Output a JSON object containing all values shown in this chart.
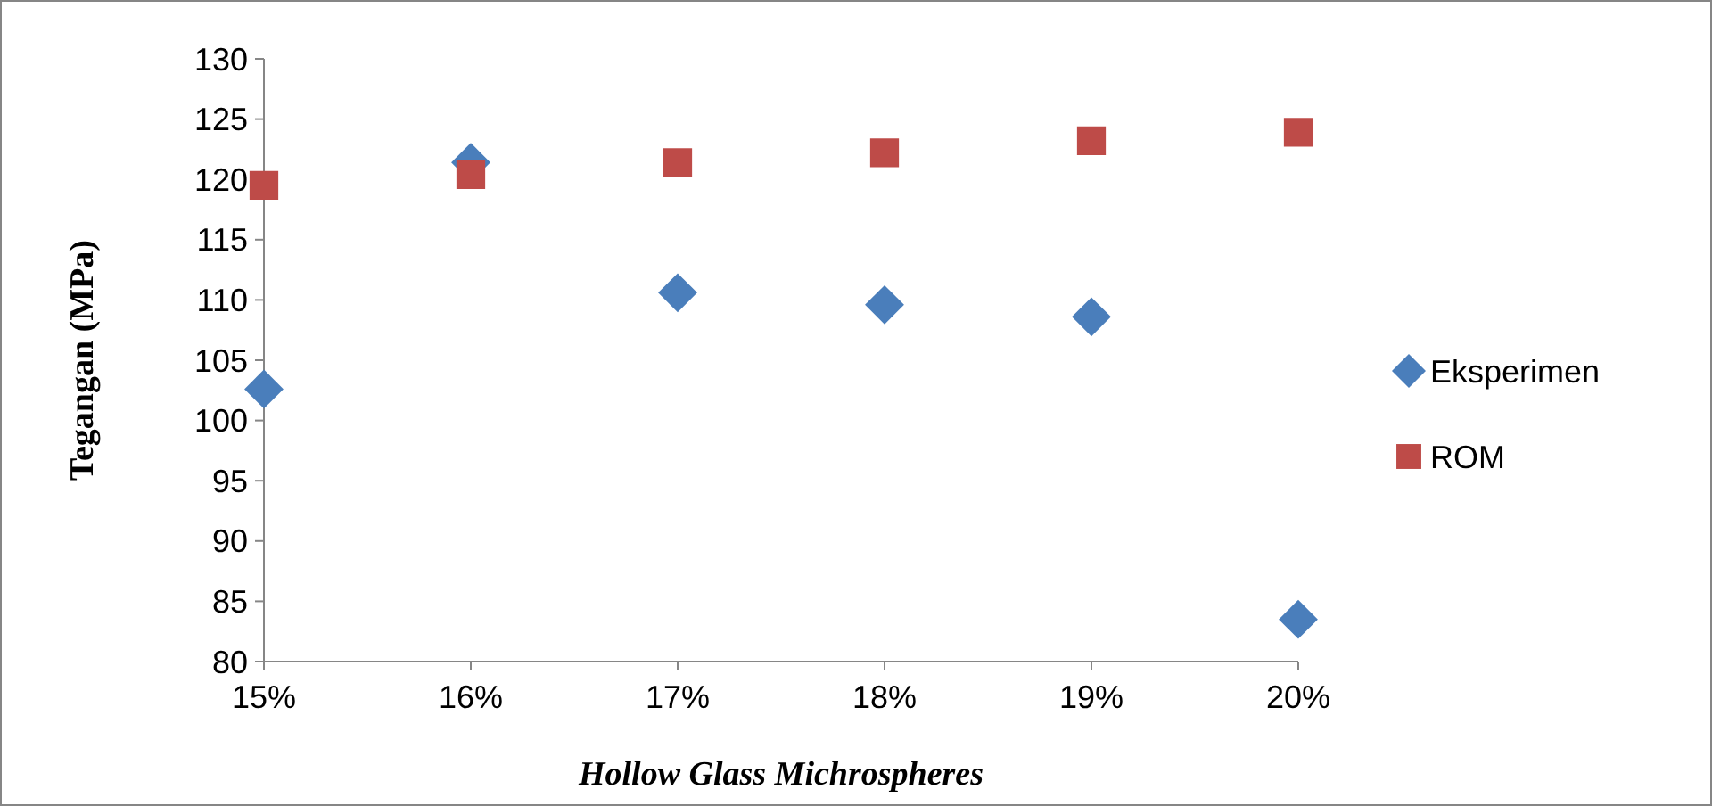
{
  "chart_data": {
    "type": "scatter",
    "xlabel": "Hollow Glass Michrospheres",
    "ylabel": "Tegangan (MPa)",
    "x": [
      15,
      16,
      17,
      18,
      19,
      20
    ],
    "series": [
      {
        "name": "Eksperimen",
        "color": "#4a7ebb",
        "marker": "diamond",
        "values": [
          102.6,
          121.4,
          110.6,
          109.6,
          108.6,
          83.5
        ]
      },
      {
        "name": "ROM",
        "color": "#be4b48",
        "marker": "square",
        "values": [
          119.5,
          120.4,
          121.4,
          122.2,
          123.2,
          123.9
        ]
      }
    ],
    "xlim": [
      15,
      20
    ],
    "xticks": [
      {
        "value": 15,
        "label": "15%"
      },
      {
        "value": 16,
        "label": "16%"
      },
      {
        "value": 17,
        "label": "17%"
      },
      {
        "value": 18,
        "label": "18%"
      },
      {
        "value": 19,
        "label": "19%"
      },
      {
        "value": 20,
        "label": "20%"
      }
    ],
    "ylim": [
      80,
      130
    ],
    "yticks": [
      80,
      85,
      90,
      95,
      100,
      105,
      110,
      115,
      120,
      125,
      130
    ],
    "grid": false,
    "legend": "right"
  }
}
